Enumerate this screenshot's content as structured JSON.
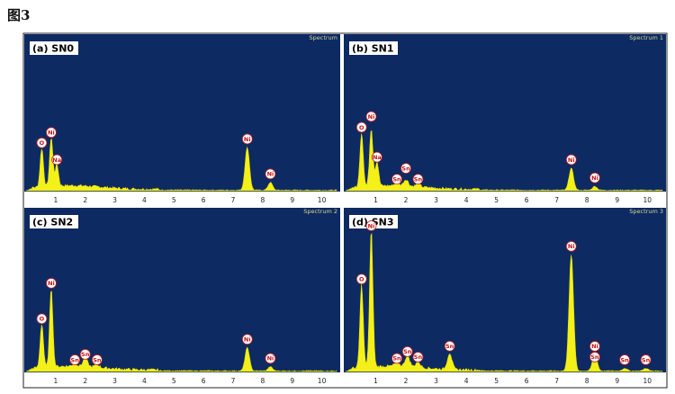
{
  "figure_title": "图3",
  "colors": {
    "background": "#0d2a63",
    "spectrum": "#f4f01a",
    "label_ring": "#c02020"
  },
  "chart_data": [
    {
      "type": "area",
      "panel": "(a)",
      "sample": "SN0",
      "spectrum_label": "Spectrum",
      "xlim": [
        0,
        10.5
      ],
      "x_ticks": [
        "1",
        "2",
        "3",
        "4",
        "5",
        "6",
        "7",
        "8",
        "9",
        "10"
      ],
      "peaks": [
        {
          "element": "O",
          "x": 0.53,
          "y": 0.3
        },
        {
          "element": "Ni",
          "x": 0.85,
          "y": 0.38
        },
        {
          "element": "Na",
          "x": 1.04,
          "y": 0.17
        },
        {
          "element": "Ni",
          "x": 7.48,
          "y": 0.33
        },
        {
          "element": "Ni",
          "x": 8.26,
          "y": 0.06
        }
      ]
    },
    {
      "type": "area",
      "panel": "(b)",
      "sample": "SN1",
      "spectrum_label": "Spectrum 1",
      "xlim": [
        0,
        10.5
      ],
      "x_ticks": [
        "1",
        "2",
        "3",
        "4",
        "5",
        "6",
        "7",
        "8",
        "9",
        "10"
      ],
      "peaks": [
        {
          "element": "O",
          "x": 0.53,
          "y": 0.42
        },
        {
          "element": "Ni",
          "x": 0.85,
          "y": 0.45
        },
        {
          "element": "Na",
          "x": 1.04,
          "y": 0.19
        },
        {
          "element": "Sn",
          "x": 1.7,
          "y": 0.02
        },
        {
          "element": "Sn",
          "x": 2.0,
          "y": 0.05
        },
        {
          "element": "Sn",
          "x": 2.4,
          "y": 0.02
        },
        {
          "element": "Ni",
          "x": 7.48,
          "y": 0.17
        },
        {
          "element": "Ni",
          "x": 8.26,
          "y": 0.03
        }
      ]
    },
    {
      "type": "area",
      "panel": "(c)",
      "sample": "SN2",
      "spectrum_label": "Spectrum 2",
      "xlim": [
        0,
        10.5
      ],
      "x_ticks": [
        "1",
        "2",
        "3",
        "4",
        "5",
        "6",
        "7",
        "8",
        "9",
        "10"
      ],
      "peaks": [
        {
          "element": "O",
          "x": 0.53,
          "y": 0.32
        },
        {
          "element": "Ni",
          "x": 0.85,
          "y": 0.58
        },
        {
          "element": "Sn",
          "x": 1.65,
          "y": 0.02
        },
        {
          "element": "Sn",
          "x": 2.0,
          "y": 0.06
        },
        {
          "element": "Sn",
          "x": 2.4,
          "y": 0.02
        },
        {
          "element": "Ni",
          "x": 7.48,
          "y": 0.17
        },
        {
          "element": "Ni",
          "x": 8.26,
          "y": 0.03
        }
      ]
    },
    {
      "type": "area",
      "panel": "(d)",
      "sample": "SN3",
      "spectrum_label": "Spectrum 3",
      "xlim": [
        0,
        10.5
      ],
      "x_ticks": [
        "1",
        "2",
        "3",
        "4",
        "5",
        "6",
        "7",
        "8",
        "9",
        "10"
      ],
      "peaks": [
        {
          "element": "O",
          "x": 0.53,
          "y": 0.61
        },
        {
          "element": "Ni",
          "x": 0.85,
          "y": 1.0
        },
        {
          "element": "Sn",
          "x": 1.7,
          "y": 0.03
        },
        {
          "element": "Sn",
          "x": 2.05,
          "y": 0.08
        },
        {
          "element": "Sn",
          "x": 2.4,
          "y": 0.04
        },
        {
          "element": "Sn",
          "x": 3.45,
          "y": 0.12
        },
        {
          "element": "Ni",
          "x": 7.48,
          "y": 0.85
        },
        {
          "element": "Sn",
          "x": 8.26,
          "y": 0.04
        },
        {
          "element": "Ni",
          "x": 8.26,
          "y": 0.09
        },
        {
          "element": "Sn",
          "x": 9.25,
          "y": 0.02
        },
        {
          "element": "Sn",
          "x": 9.95,
          "y": 0.02
        }
      ]
    }
  ]
}
